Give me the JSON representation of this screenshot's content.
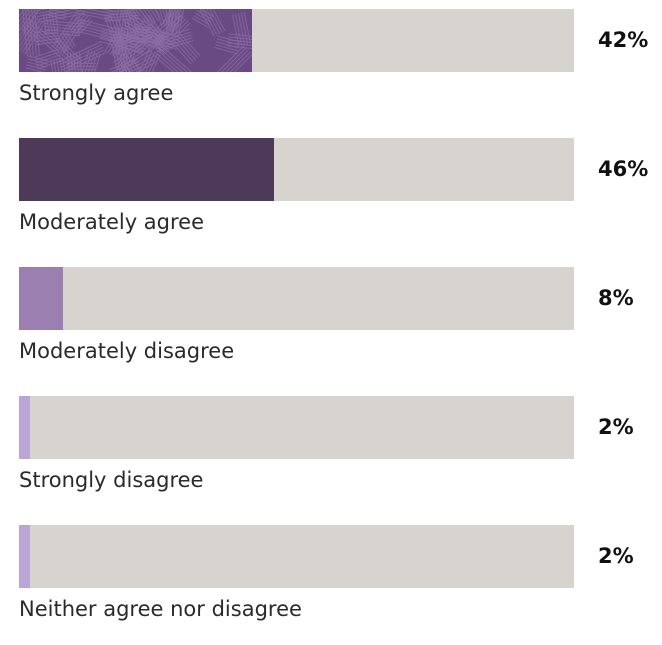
{
  "chart_data": {
    "type": "bar",
    "orientation": "horizontal",
    "categories": [
      "Strongly agree",
      "Moderately agree",
      "Moderately disagree",
      "Strongly disagree",
      "Neither agree nor disagree"
    ],
    "values": [
      42,
      46,
      8,
      2,
      2
    ],
    "value_labels": [
      "42%",
      "46%",
      "8%",
      "2%",
      "2%"
    ],
    "xlim": [
      0,
      100
    ],
    "colors": [
      "#6a4a82",
      "#4c3a58",
      "#9a7fb0",
      "#b9a6d4",
      "#b9a6d4"
    ],
    "track_color": "#d7d3ce",
    "patterned": [
      true,
      false,
      false,
      false,
      false
    ],
    "title": "",
    "xlabel": "",
    "ylabel": "",
    "grid": false,
    "legend": "none"
  }
}
